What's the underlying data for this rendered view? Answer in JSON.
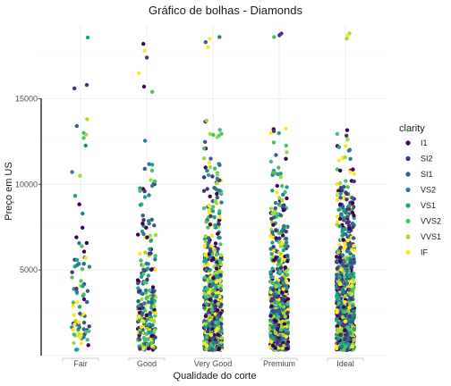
{
  "chart_data": {
    "type": "scatter",
    "title": "Gráfico de bolhas - Diamonds",
    "xlabel": "Qualidade do corte",
    "ylabel": "Preço em US",
    "categories": [
      "Fair",
      "Good",
      "Very Good",
      "Premium",
      "Ideal"
    ],
    "ylim": [
      0,
      19300
    ],
    "yticks": [
      5000,
      10000,
      15000
    ],
    "ytick_labels": [
      "5000",
      "10000",
      "15000"
    ],
    "grid": true,
    "legend": {
      "title": "clarity",
      "position": "right",
      "entries": [
        "I1",
        "SI2",
        "SI1",
        "VS2",
        "VS1",
        "VVS2",
        "VVS1",
        "IF"
      ],
      "colors": [
        "#440154",
        "#46337e",
        "#365c8d",
        "#277f8e",
        "#1fa187",
        "#4ac16d",
        "#a0da39",
        "#fde725"
      ]
    },
    "series": [
      {
        "category": "Fair",
        "price_range": [
          337,
          18574
        ],
        "point_density": 0.09,
        "extreme_points": [
          18574,
          15800,
          15600,
          13800,
          13400,
          12900,
          12700
        ]
      },
      {
        "category": "Good",
        "price_range": [
          327,
          18788
        ],
        "point_density": 0.28,
        "extreme_points": [
          18200,
          17800,
          17400,
          16500,
          15700,
          15400
        ]
      },
      {
        "category": "Very Good",
        "price_range": [
          336,
          18818
        ],
        "point_density": 0.75,
        "extreme_points": [
          18600,
          18500,
          18300,
          18000
        ]
      },
      {
        "category": "Premium",
        "price_range": [
          326,
          18823
        ],
        "point_density": 0.8,
        "extreme_points": [
          18800,
          18700,
          18600
        ]
      },
      {
        "category": "Ideal",
        "price_range": [
          326,
          18806
        ],
        "point_density": 1.0,
        "extreme_points": [
          18806,
          18700,
          18500
        ]
      }
    ]
  }
}
